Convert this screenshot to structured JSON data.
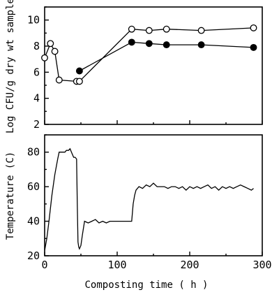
{
  "chart_data": [
    {
      "type": "scatter",
      "ylabel": "Log CFU/g dry wt sample",
      "xlim": [
        0,
        300
      ],
      "ylim": [
        2,
        11
      ],
      "yticks": [
        2,
        4,
        6,
        8,
        10
      ],
      "marker_fill": "#000000",
      "marker_open_fill": "#ffffff",
      "series": [
        {
          "marker": "open-circle",
          "x": [
            0,
            8,
            14,
            20,
            44,
            48,
            120,
            144,
            168,
            216,
            288
          ],
          "y": [
            7.1,
            8.2,
            7.6,
            5.4,
            5.3,
            5.3,
            9.3,
            9.2,
            9.3,
            9.2,
            9.4
          ]
        },
        {
          "marker": "filled-circle",
          "x": [
            48,
            120,
            144,
            168,
            216,
            288
          ],
          "y": [
            6.1,
            8.3,
            8.2,
            8.1,
            8.1,
            7.9
          ]
        }
      ]
    },
    {
      "type": "line",
      "xlabel": "Composting time ( h )",
      "ylabel": "Temperature (C)",
      "xlim": [
        0,
        300
      ],
      "ylim": [
        20,
        90
      ],
      "xticks": [
        0,
        100,
        200,
        300
      ],
      "yticks": [
        20,
        40,
        60,
        80
      ],
      "series": [
        {
          "x": [
            0,
            3,
            6,
            10,
            14,
            18,
            20,
            24,
            28,
            30,
            33,
            35,
            38,
            40,
            42,
            44,
            45,
            46,
            47,
            48,
            50,
            52,
            55,
            60,
            65,
            70,
            75,
            80,
            85,
            90,
            95,
            100,
            105,
            110,
            115,
            120,
            122,
            124,
            126,
            130,
            135,
            140,
            145,
            150,
            155,
            160,
            165,
            170,
            175,
            180,
            185,
            190,
            195,
            200,
            205,
            210,
            215,
            220,
            225,
            230,
            235,
            240,
            245,
            250,
            255,
            260,
            265,
            270,
            275,
            280,
            285,
            288
          ],
          "y": [
            23,
            30,
            40,
            55,
            67,
            76,
            80,
            80,
            80,
            81,
            81,
            82,
            79,
            77,
            77,
            76,
            50,
            28,
            25,
            24,
            26,
            32,
            40,
            39,
            40,
            41,
            39,
            40,
            39,
            40,
            40,
            40,
            40,
            40,
            40,
            40,
            50,
            55,
            58,
            60,
            59,
            61,
            60,
            62,
            60,
            60,
            60,
            59,
            60,
            60,
            59,
            60,
            58,
            60,
            59,
            60,
            59,
            60,
            61,
            59,
            60,
            58,
            60,
            59,
            60,
            59,
            60,
            61,
            60,
            59,
            58,
            59
          ]
        }
      ]
    }
  ]
}
